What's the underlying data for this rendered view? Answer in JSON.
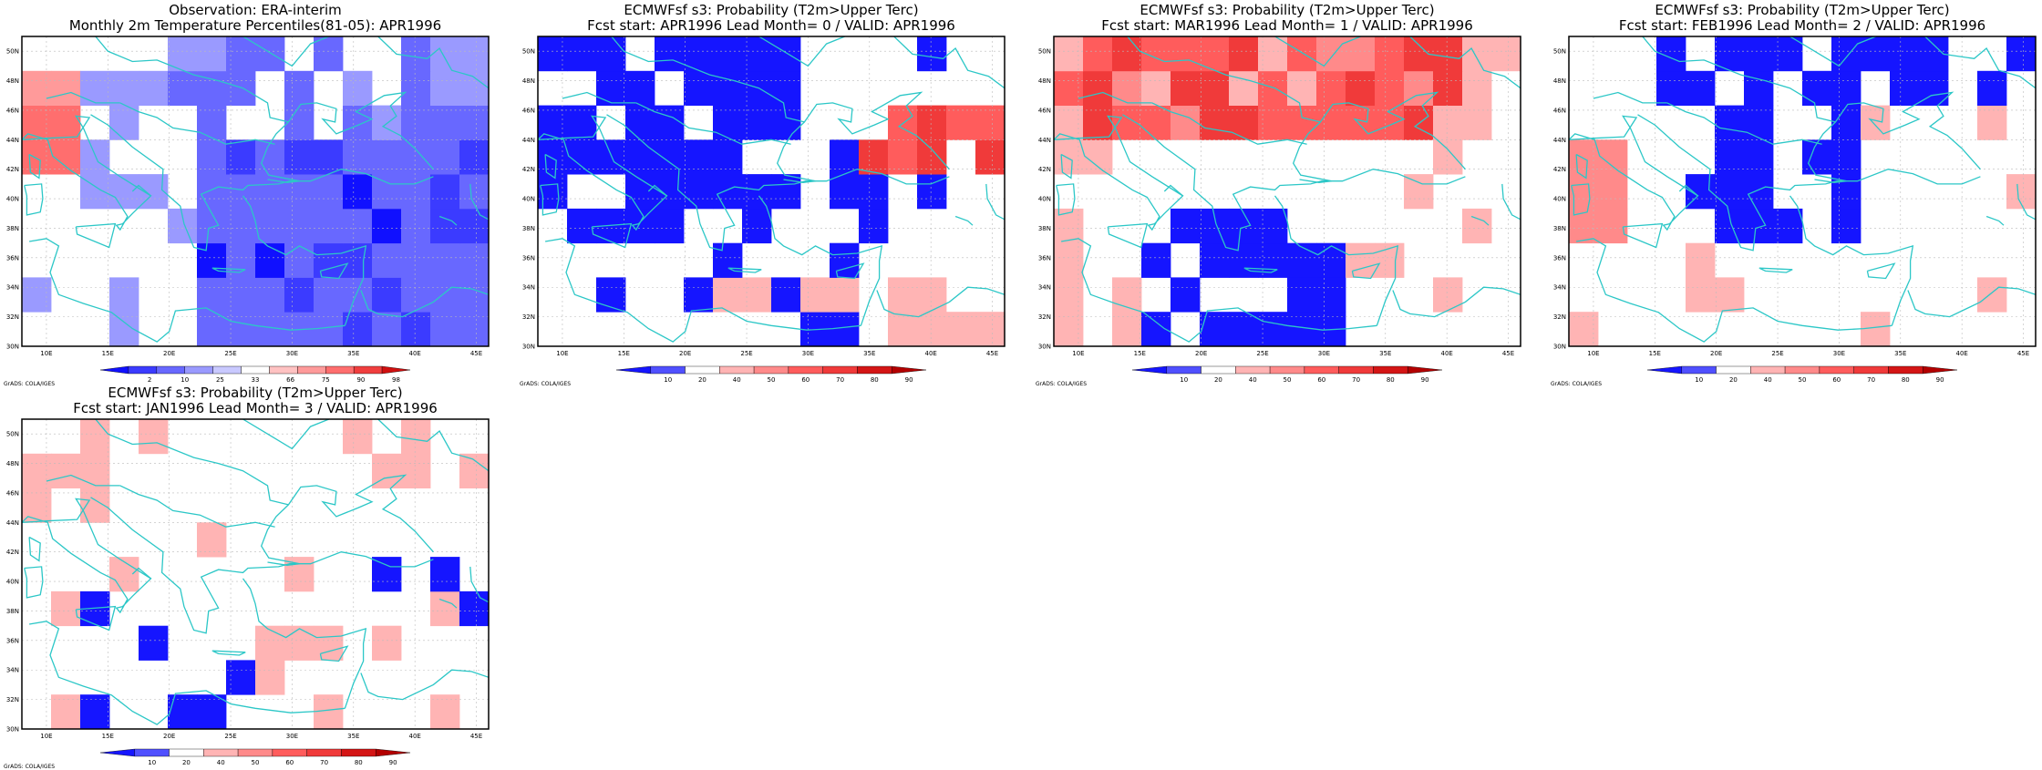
{
  "footer_credit": "GrADS: COLA/IGES",
  "colors": {
    "coast": "#2cc7c7",
    "grid": "#bbbbbb",
    "frame": "#000000",
    "levels": [
      "#1010ff",
      "#3b3bff",
      "#6868ff",
      "#9a9aff",
      "#c9c9ff",
      "#ffffff",
      "#ffc2c2",
      "#ff9a9a",
      "#ff6e6e",
      "#f03e3e",
      "#d01010"
    ],
    "prob_levels": [
      "#1515ff",
      "#5050ff",
      "#ffffff",
      "#ffb4b4",
      "#ff8a8a",
      "#ff5c5c",
      "#f03a3a",
      "#d41515",
      "#b30000"
    ]
  },
  "map": {
    "lon_range": [
      8,
      46
    ],
    "lat_range": [
      30,
      51
    ],
    "lon_ticks": [
      "10E",
      "15E",
      "20E",
      "25E",
      "30E",
      "35E",
      "40E",
      "45E"
    ],
    "lat_ticks": [
      "30N",
      "32N",
      "34N",
      "36N",
      "38N",
      "40N",
      "42N",
      "44N",
      "46N",
      "48N",
      "50N"
    ]
  },
  "panels": [
    {
      "title1": "Observation: ERA-interim",
      "title2": "Monthly 2m Temperature Percentiles(81-05): APR1996",
      "colorbar_labels": [
        "2",
        "10",
        "25",
        "33",
        "66",
        "75",
        "90",
        "98"
      ],
      "colorbar_type": "percentile",
      "cell_levels": [
        "..........33..............................................",
        "............................................................"
      ]
    },
    {
      "title1": "ECMWFsf s3: Probability (T2m>Upper Terc)",
      "title2": "Fcst start: APR1996   Lead Month= 0 / VALID: APR1996",
      "colorbar_labels": [
        "10",
        "20",
        "40",
        "50",
        "60",
        "70",
        "80",
        "90"
      ],
      "colorbar_type": "probability"
    },
    {
      "title1": "ECMWFsf s3: Probability (T2m>Upper Terc)",
      "title2": "Fcst start: MAR1996   Lead Month= 1 / VALID: APR1996",
      "colorbar_labels": [
        "10",
        "20",
        "40",
        "50",
        "60",
        "70",
        "80",
        "90"
      ],
      "colorbar_type": "probability"
    },
    {
      "title1": "ECMWFsf s3: Probability (T2m>Upper Terc)",
      "title2": "Fcst start: FEB1996   Lead Month= 2 / VALID: APR1996",
      "colorbar_labels": [
        "10",
        "20",
        "40",
        "50",
        "60",
        "70",
        "80",
        "90"
      ],
      "colorbar_type": "probability"
    },
    {
      "title1": "ECMWFsf s3: Probability (T2m>Upper Terc)",
      "title2": "Fcst start: JAN1996   Lead Month= 3 / VALID: APR1996",
      "colorbar_labels": [
        "10",
        "20",
        "40",
        "50",
        "60",
        "70",
        "80",
        "90"
      ],
      "colorbar_type": "probability"
    }
  ]
}
